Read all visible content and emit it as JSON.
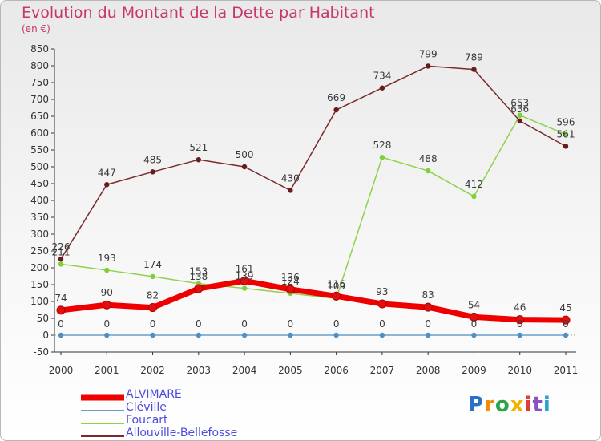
{
  "chart_data": {
    "type": "line",
    "title": "Evolution du Montant de la Dette par Habitant",
    "subtitle": "(en €)",
    "xlabel": "",
    "ylabel": "",
    "ylim": [
      -50,
      850
    ],
    "yticks": [
      -50,
      0,
      50,
      100,
      150,
      200,
      250,
      300,
      350,
      400,
      450,
      500,
      550,
      600,
      650,
      700,
      750,
      800,
      850
    ],
    "categories": [
      "2000",
      "2001",
      "2002",
      "2003",
      "2004",
      "2005",
      "2006",
      "2007",
      "2008",
      "2009",
      "2010",
      "2011"
    ],
    "grid": false,
    "legend_position": "bottom-left",
    "series": [
      {
        "name": "ALVIMARE",
        "color": "#ee0000",
        "marker": "#e01010",
        "values": [
          74,
          90,
          82,
          138,
          161,
          136,
          116,
          93,
          83,
          54,
          46,
          45
        ],
        "labels": [
          "74",
          "90",
          "82",
          "138",
          "161",
          "136",
          "116",
          "93",
          "83",
          "54",
          "46",
          "45"
        ]
      },
      {
        "name": "Cléville",
        "color": "#6a9ec9",
        "marker": "#4f8fc4",
        "values": [
          0,
          0,
          0,
          0,
          0,
          0,
          0,
          0,
          0,
          0,
          0,
          0
        ],
        "labels": [
          "0",
          "0",
          "0",
          "0",
          "0",
          "0",
          "0",
          "0",
          "0",
          "0",
          "0",
          "0"
        ]
      },
      {
        "name": "Foucart",
        "color": "#8fd24a",
        "marker": "#7fcf3a",
        "values": [
          211,
          193,
          174,
          153,
          139,
          124,
          109,
          528,
          488,
          412,
          653,
          596
        ],
        "labels": [
          "211",
          "193",
          "174",
          "153",
          "139",
          "124",
          "109",
          "528",
          "488",
          "412",
          "653",
          "596"
        ]
      },
      {
        "name": "Allouville-Bellefosse",
        "color": "#7a2a2a",
        "marker": "#6a1a1a",
        "values": [
          226,
          447,
          485,
          521,
          500,
          430,
          669,
          734,
          799,
          789,
          636,
          561
        ],
        "labels": [
          "226",
          "447",
          "485",
          "521",
          "500",
          "430",
          "669",
          "734",
          "799",
          "789",
          "636",
          "561"
        ]
      }
    ]
  },
  "logo": {
    "letters": [
      "P",
      "r",
      "o",
      "x",
      "i",
      "t",
      "i"
    ]
  }
}
